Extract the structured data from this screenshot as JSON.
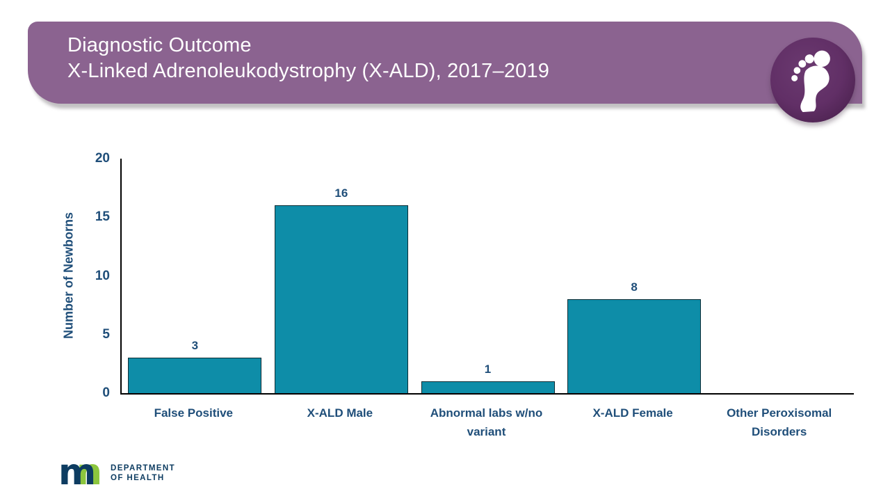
{
  "slide": {
    "title_line1": "Diagnostic Outcome",
    "title_line2": "X-Linked Adrenoleukodystrophy (X-ALD), 2017–2019"
  },
  "chart_data": {
    "type": "bar",
    "title": "Diagnostic Outcome, X-Linked Adrenoleukodystrophy (X-ALD), 2017–2019",
    "categories": [
      "False Positive",
      "X-ALD Male",
      "Abnormal labs w/no variant",
      "X-ALD Female",
      "Other Peroxisomal Disorders"
    ],
    "values": [
      3,
      16,
      1,
      8,
      0
    ],
    "xlabel": "",
    "ylabel": "Number of Newborns",
    "ylim": [
      0,
      20
    ],
    "yticks": [
      20,
      15,
      10,
      5,
      0
    ],
    "grid": false,
    "legend": "none",
    "bar_color": "#0E8DA8",
    "label_color": "#1F4E79"
  },
  "icons": {
    "badge": "baby-footprint-icon",
    "logo": "mn-state-logo"
  },
  "footer": {
    "logo_m": "m",
    "logo_n": "n",
    "dept_line1": "DEPARTMENT",
    "dept_line2": "OF HEALTH"
  },
  "colors": {
    "banner_purple": "#8B6390",
    "badge_purple_dark": "#451d49",
    "bar_teal": "#0E8DA8",
    "text_navy": "#1F4E79",
    "logo_navy": "#0D3C61",
    "logo_green": "#8CC63E",
    "axis_black": "#000000",
    "background": "#FFFFFF"
  }
}
